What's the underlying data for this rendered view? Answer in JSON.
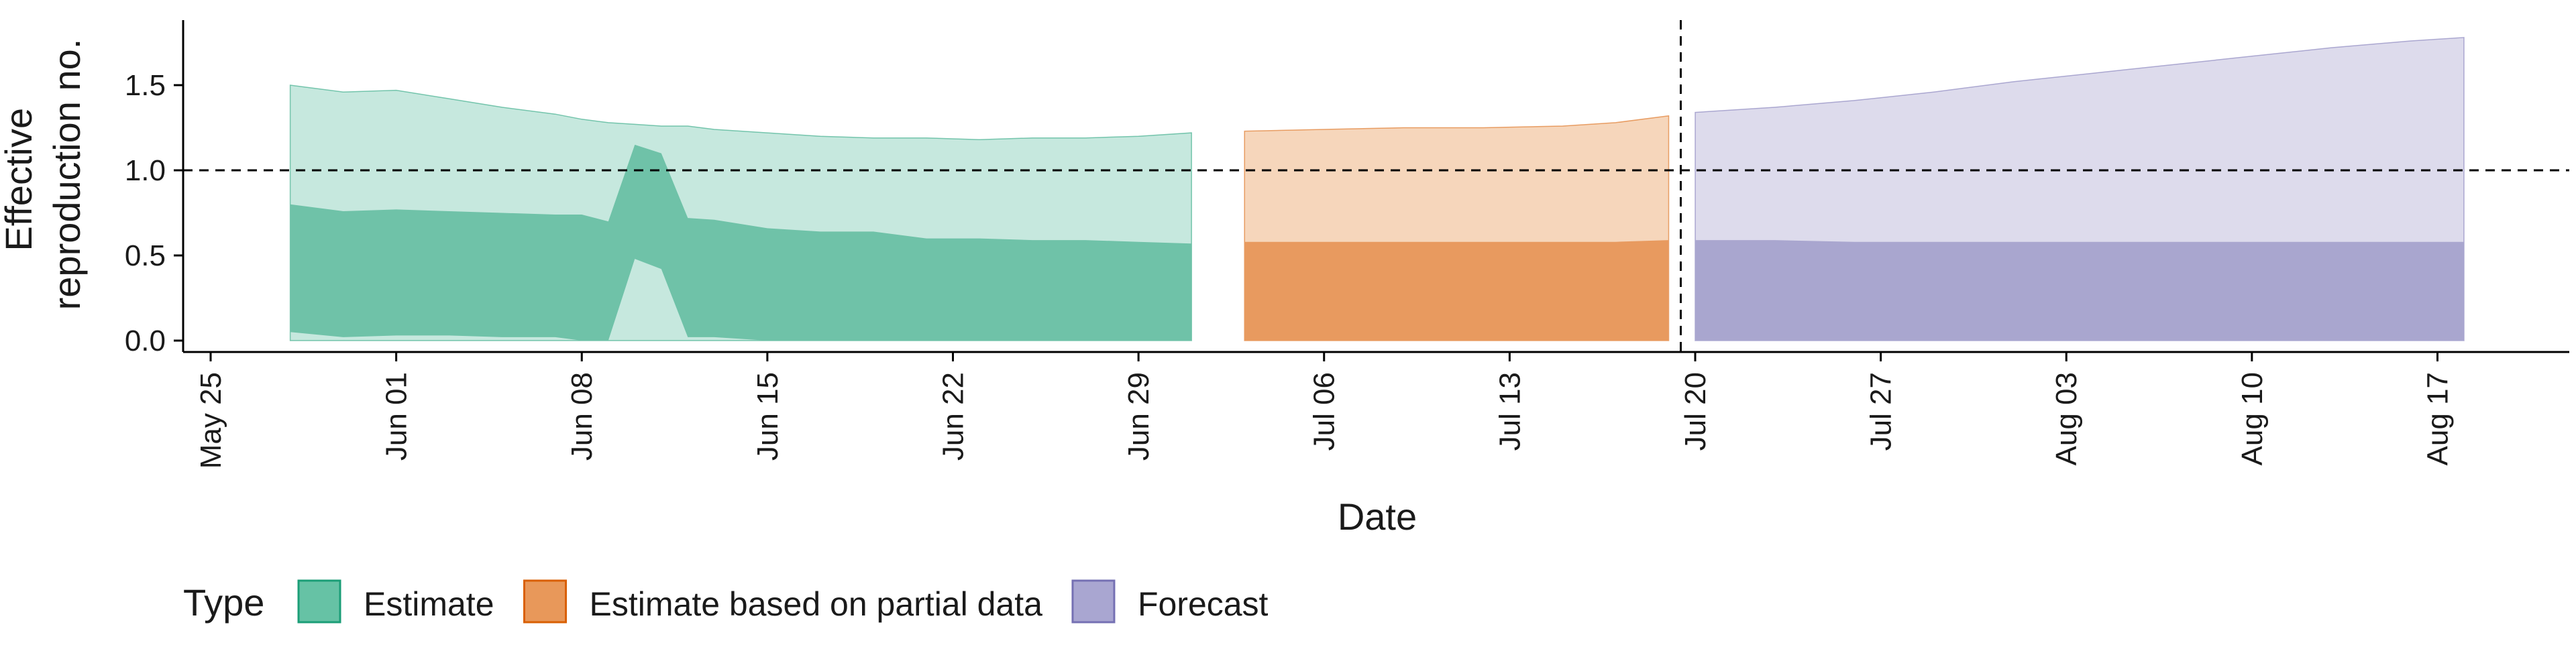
{
  "chart_data": {
    "type": "area",
    "xlabel": "Date",
    "ylabel_lines": [
      "Effective",
      "reproduction no."
    ],
    "legend_title": "Type",
    "legend_position": "bottom",
    "x_ticks": [
      "May 25",
      "Jun 01",
      "Jun 08",
      "Jun 15",
      "Jun 22",
      "Jun 29",
      "Jul 06",
      "Jul 13",
      "Jul 20",
      "Jul 27",
      "Aug 03",
      "Aug 10",
      "Aug 17"
    ],
    "x_range": [
      "2020-05-25",
      "2020-08-21"
    ],
    "y_ticks": [
      "0.0",
      "0.5",
      "1.0",
      "1.5"
    ],
    "y_range": [
      0,
      1.85
    ],
    "reference_line_y": 1.0,
    "forecast_start_date": "2020-07-19",
    "grid": false,
    "series": [
      {
        "name": "Estimate",
        "color": "#1b9e77",
        "dates": [
          "2020-05-28",
          "2020-05-30",
          "2020-06-01",
          "2020-06-03",
          "2020-06-05",
          "2020-06-07",
          "2020-06-08",
          "2020-06-09",
          "2020-06-10",
          "2020-06-11",
          "2020-06-12",
          "2020-06-13",
          "2020-06-15",
          "2020-06-17",
          "2020-06-19",
          "2020-06-21",
          "2020-06-23",
          "2020-06-25",
          "2020-06-27",
          "2020-06-29",
          "2020-07-01"
        ],
        "outer_upper": [
          1.5,
          1.46,
          1.47,
          1.42,
          1.37,
          1.33,
          1.3,
          1.28,
          1.27,
          1.26,
          1.26,
          1.24,
          1.22,
          1.2,
          1.19,
          1.19,
          1.18,
          1.19,
          1.19,
          1.2,
          1.22
        ],
        "inner_upper": [
          0.8,
          0.76,
          0.77,
          0.76,
          0.75,
          0.74,
          0.74,
          0.7,
          1.15,
          1.1,
          0.72,
          0.71,
          0.66,
          0.64,
          0.64,
          0.6,
          0.6,
          0.59,
          0.59,
          0.58,
          0.57
        ],
        "inner_lower": [
          0.05,
          0.02,
          0.03,
          0.03,
          0.02,
          0.02,
          0.0,
          0.0,
          0.48,
          0.42,
          0.02,
          0.02,
          0.0,
          0.0,
          0.0,
          0.0,
          0.0,
          0.0,
          0.0,
          0.0,
          0.0
        ],
        "outer_lower": [
          0,
          0,
          0,
          0,
          0,
          0,
          0,
          0,
          0,
          0,
          0,
          0,
          0,
          0,
          0,
          0,
          0,
          0,
          0,
          0,
          0
        ]
      },
      {
        "name": "Estimate based on partial data",
        "color": "#d95f02",
        "dates": [
          "2020-07-03",
          "2020-07-06",
          "2020-07-09",
          "2020-07-12",
          "2020-07-15",
          "2020-07-17",
          "2020-07-19"
        ],
        "outer_upper": [
          1.23,
          1.24,
          1.25,
          1.25,
          1.26,
          1.28,
          1.32
        ],
        "inner_upper": [
          0.58,
          0.58,
          0.58,
          0.58,
          0.58,
          0.58,
          0.59
        ],
        "inner_lower": [
          0,
          0,
          0,
          0,
          0,
          0,
          0
        ],
        "outer_lower": [
          0,
          0,
          0,
          0,
          0,
          0,
          0
        ]
      },
      {
        "name": "Forecast",
        "color": "#7570b3",
        "dates": [
          "2020-07-20",
          "2020-07-23",
          "2020-07-26",
          "2020-07-29",
          "2020-08-01",
          "2020-08-04",
          "2020-08-07",
          "2020-08-10",
          "2020-08-13",
          "2020-08-16",
          "2020-08-18"
        ],
        "outer_upper": [
          1.34,
          1.37,
          1.41,
          1.46,
          1.52,
          1.57,
          1.62,
          1.67,
          1.72,
          1.76,
          1.78
        ],
        "inner_upper": [
          0.59,
          0.59,
          0.58,
          0.58,
          0.58,
          0.58,
          0.58,
          0.58,
          0.58,
          0.58,
          0.58
        ],
        "inner_lower": [
          0,
          0,
          0,
          0,
          0,
          0,
          0,
          0,
          0,
          0,
          0
        ],
        "outer_lower": [
          0,
          0,
          0,
          0,
          0,
          0,
          0,
          0,
          0,
          0,
          0
        ]
      }
    ],
    "legend": [
      {
        "label": "Estimate",
        "fill": "#66c2a5",
        "stroke": "#1b9e77"
      },
      {
        "label": "Estimate based on partial data",
        "fill": "#e8985a",
        "stroke": "#d95f02"
      },
      {
        "label": "Forecast",
        "fill": "#a9a6d1",
        "stroke": "#7570b3"
      }
    ]
  }
}
